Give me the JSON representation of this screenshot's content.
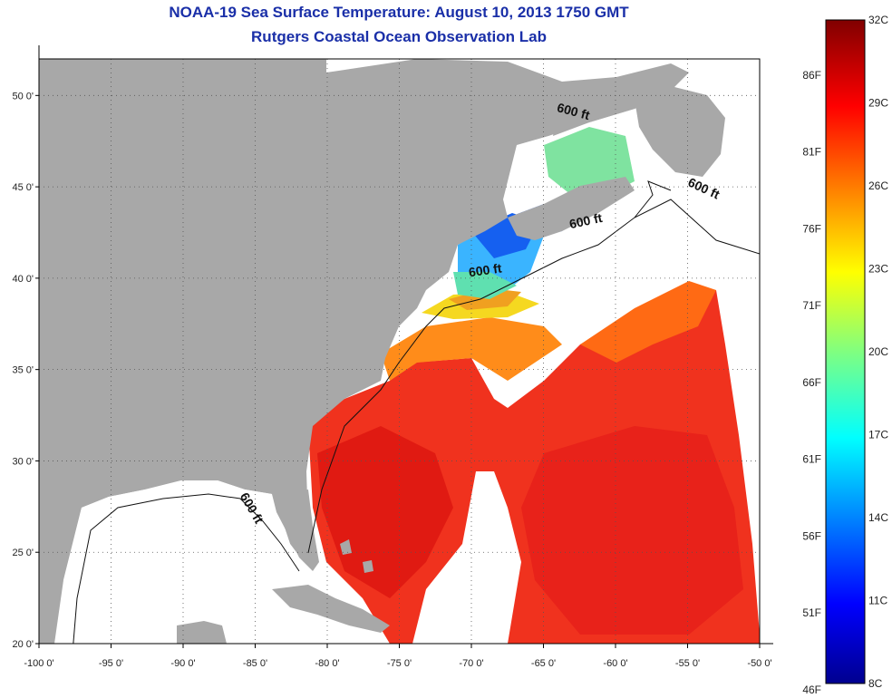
{
  "header": {
    "title": "NOAA-19 Sea Surface Temperature:  August 10, 2013 1750 GMT",
    "subtitle": "Rutgers Coastal Ocean Observation Lab"
  },
  "map": {
    "lon_range": [
      -100,
      -50
    ],
    "lat_range": [
      20,
      52
    ],
    "lon_ticks": [
      {
        "value": -100,
        "label": "-100 0'"
      },
      {
        "value": -95,
        "label": "-95 0'"
      },
      {
        "value": -90,
        "label": "-90 0'"
      },
      {
        "value": -85,
        "label": "-85 0'"
      },
      {
        "value": -80,
        "label": "-80 0'"
      },
      {
        "value": -75,
        "label": "-75 0'"
      },
      {
        "value": -70,
        "label": "-70 0'"
      },
      {
        "value": -65,
        "label": "-65 0'"
      },
      {
        "value": -60,
        "label": "-60 0'"
      },
      {
        "value": -55,
        "label": "-55 0'"
      },
      {
        "value": -50,
        "label": "-50 0'"
      }
    ],
    "lat_ticks": [
      {
        "value": 20,
        "label": "20 0'"
      },
      {
        "value": 25,
        "label": "25 0'"
      },
      {
        "value": 30,
        "label": "30 0'"
      },
      {
        "value": 35,
        "label": "35 0'"
      },
      {
        "value": 40,
        "label": "40 0'"
      },
      {
        "value": 45,
        "label": "45 0'"
      },
      {
        "value": 50,
        "label": "50 0'"
      }
    ],
    "contour_labels": [
      {
        "text": "600 ft",
        "lon": -63,
        "lat": 48.9,
        "rotate": 15
      },
      {
        "text": "600 ft",
        "lon": -54,
        "lat": 44.7,
        "rotate": 25
      },
      {
        "text": "600 ft",
        "lon": -62,
        "lat": 42.9,
        "rotate": -12
      },
      {
        "text": "600 ft",
        "lon": -69,
        "lat": 40.2,
        "rotate": -8
      },
      {
        "text": "600 ft",
        "lon": -85.5,
        "lat": 27.3,
        "rotate": 60
      }
    ],
    "colors": {
      "land": "#a8a8a8",
      "cloud": "#ffffff",
      "grid": "#555555"
    }
  },
  "colorbar": {
    "min_c": 8,
    "max_c": 32,
    "celsius_labels": [
      {
        "value": 32,
        "label": "32C"
      },
      {
        "value": 29,
        "label": "29C"
      },
      {
        "value": 26,
        "label": "26C"
      },
      {
        "value": 23,
        "label": "23C"
      },
      {
        "value": 20,
        "label": "20C"
      },
      {
        "value": 17,
        "label": "17C"
      },
      {
        "value": 14,
        "label": "14C"
      },
      {
        "value": 11,
        "label": "11C"
      },
      {
        "value": 8,
        "label": "8C"
      }
    ],
    "fahrenheit_labels": [
      {
        "value": 86,
        "label": "86F"
      },
      {
        "value": 81,
        "label": "81F"
      },
      {
        "value": 76,
        "label": "76F"
      },
      {
        "value": 71,
        "label": "71F"
      },
      {
        "value": 66,
        "label": "66F"
      },
      {
        "value": 61,
        "label": "61F"
      },
      {
        "value": 56,
        "label": "56F"
      },
      {
        "value": 51,
        "label": "51F"
      },
      {
        "value": 46,
        "label": "46F"
      }
    ]
  }
}
